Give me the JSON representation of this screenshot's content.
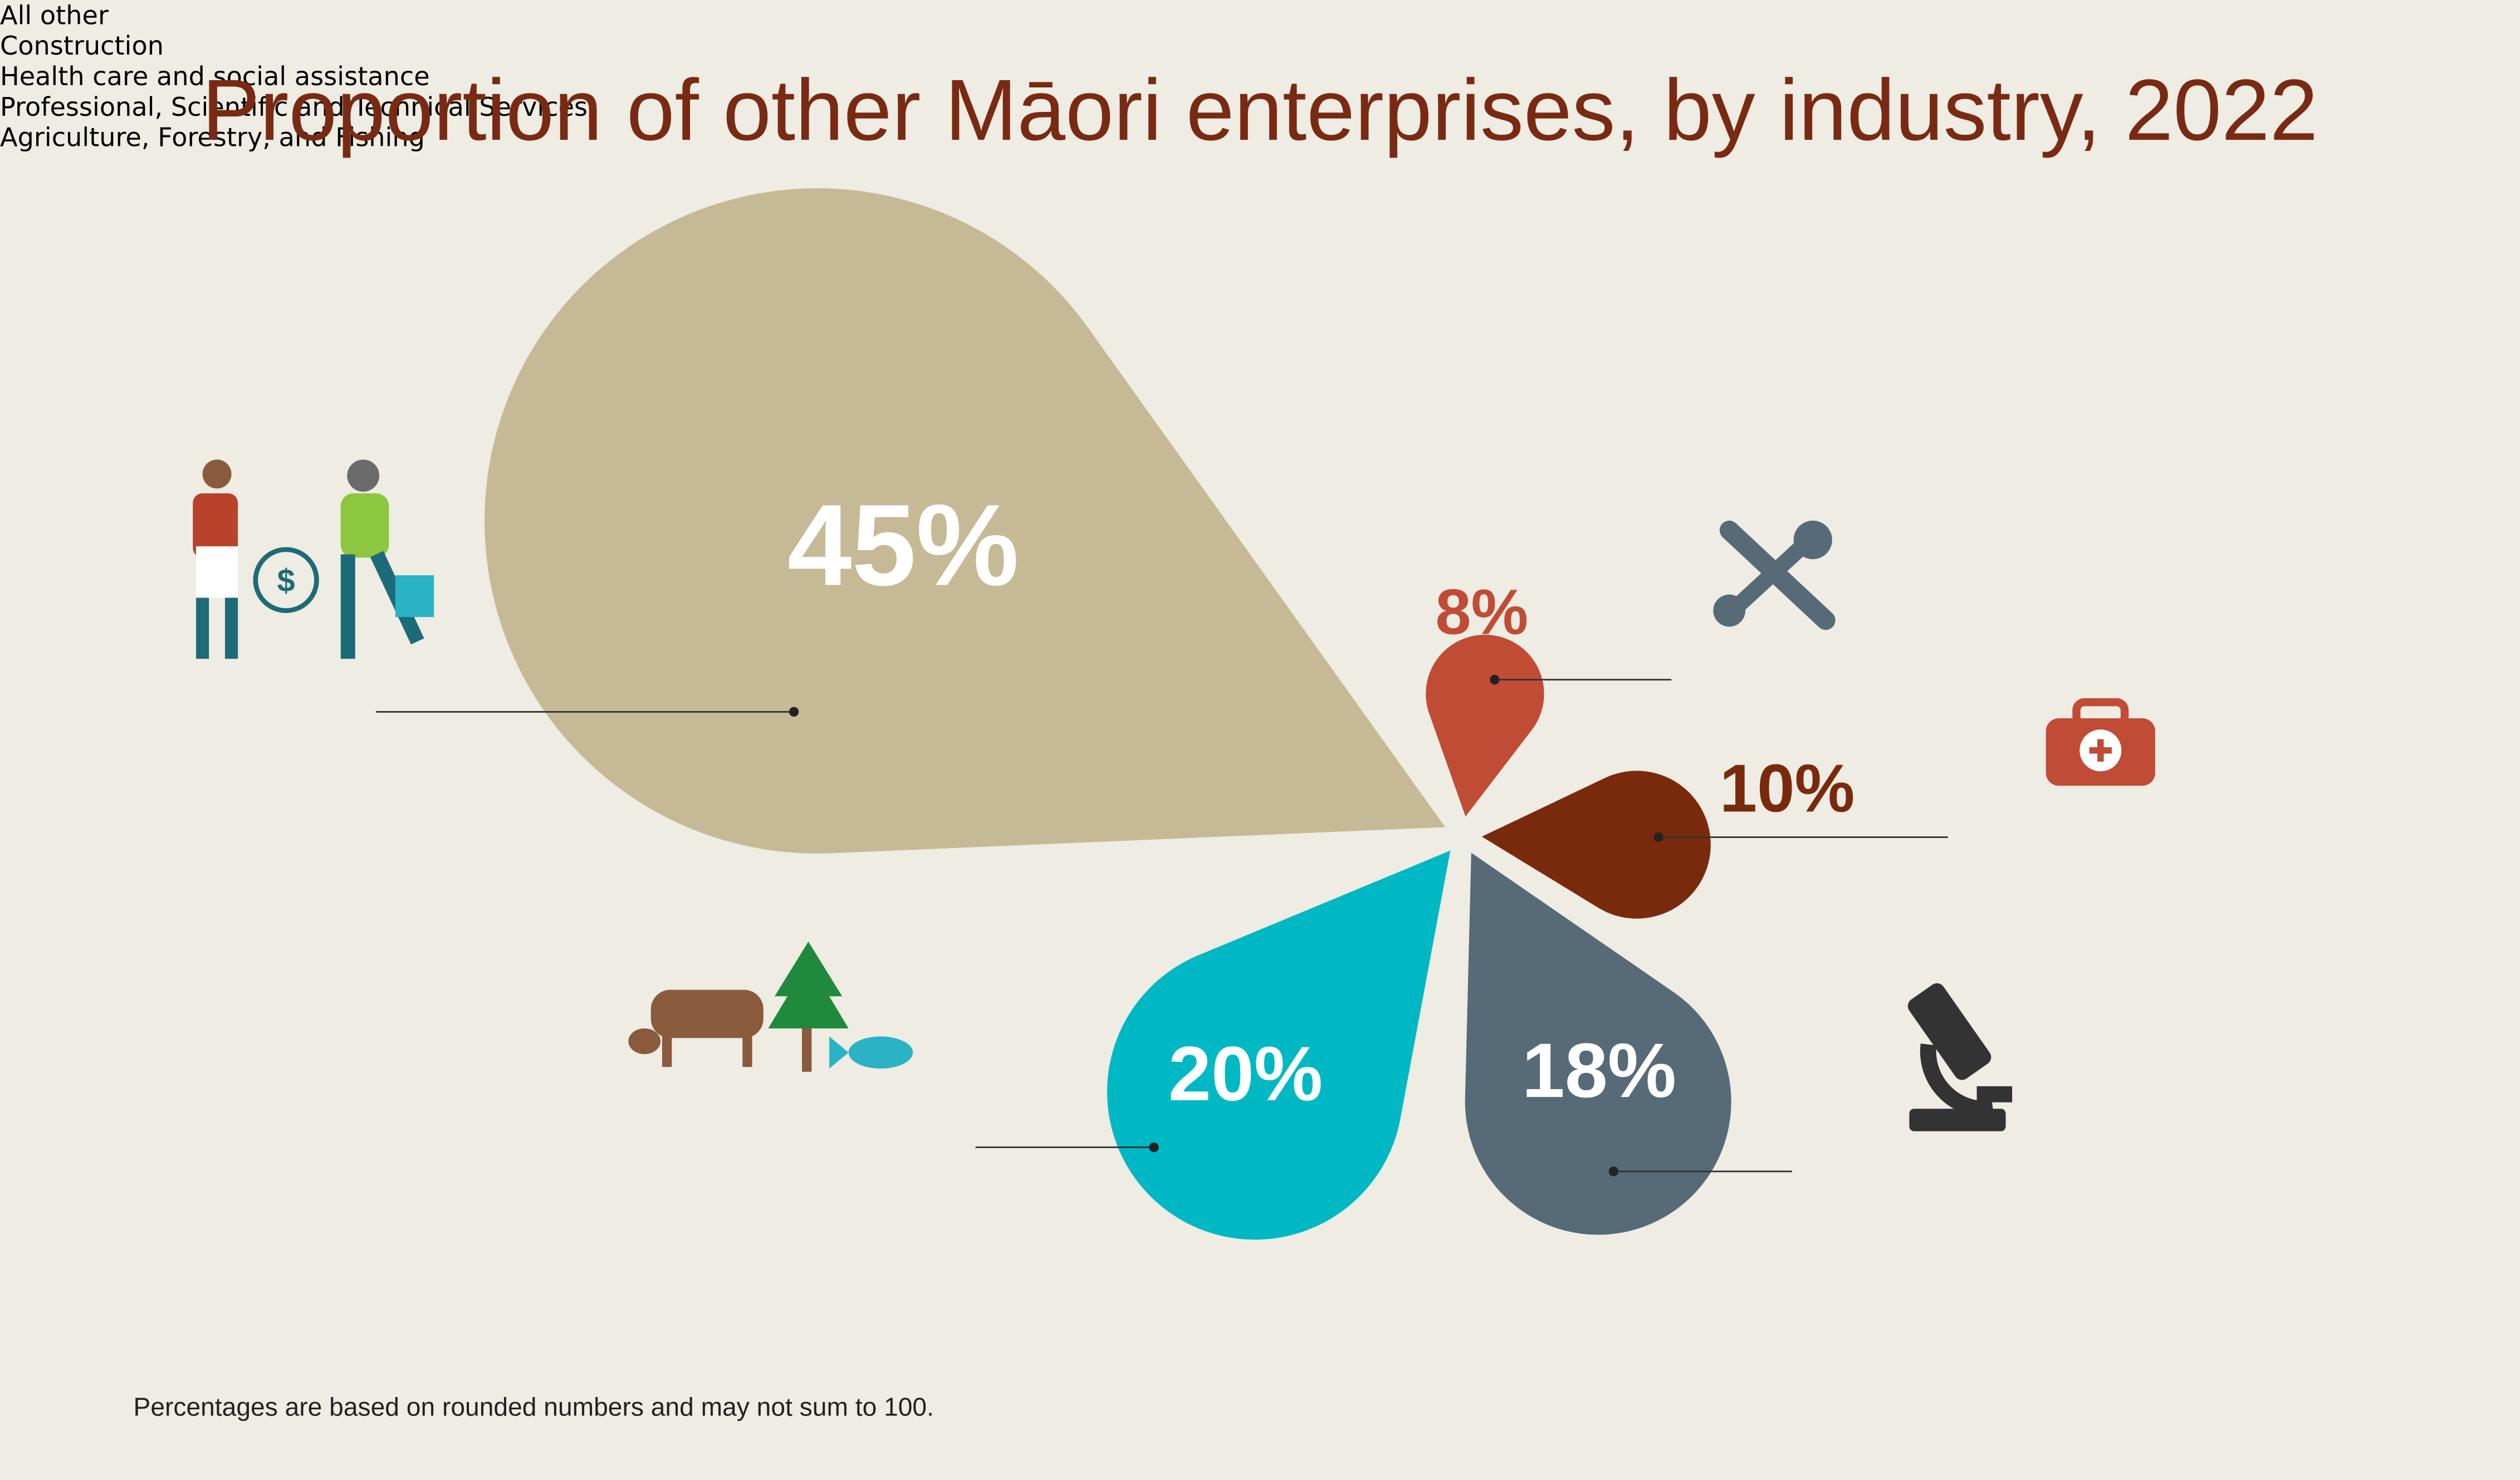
{
  "chart_data": {
    "type": "petal",
    "title": "Proportion of other Māori enterprises, by industry, 2022",
    "categories": [
      "All other",
      "Construction",
      "Health care and\nsocial assistance",
      "Professional, Scientific\nand Technical Services",
      "Agriculture, Forestry,\nand Fishing"
    ],
    "values": [
      45,
      8,
      10,
      18,
      20
    ],
    "value_labels": [
      "45%",
      "8%",
      "10%",
      "18%",
      "20%"
    ],
    "colors": [
      "#c6b996",
      "#c04c36",
      "#7a2a0c",
      "#566a78",
      "#00b8c4"
    ],
    "footnote": "Percentages are based on rounded numbers and may not sum to 100."
  }
}
